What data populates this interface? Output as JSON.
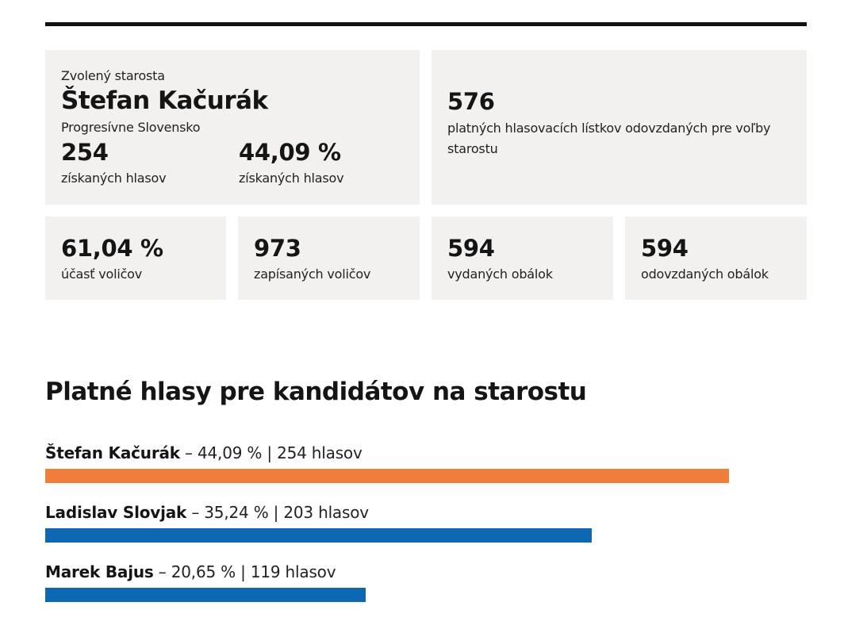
{
  "elected": {
    "caption": "Zvolený starosta",
    "name": "Štefan Kačurák",
    "party": "Progresívne Slovensko",
    "votes": "254",
    "votes_label": "získaných hlasov",
    "percent": "44,09 %",
    "percent_label": "získaných hlasov"
  },
  "valid_ballots": {
    "value": "576",
    "label": "platných hlasovacích lístkov odovzdaných pre voľby starostu"
  },
  "stats": [
    {
      "value": "61,04 %",
      "label": "účasť voličov"
    },
    {
      "value": "973",
      "label": "zapísaných voličov"
    },
    {
      "value": "594",
      "label": "vydaných obálok"
    },
    {
      "value": "594",
      "label": "odovzdaných obálok"
    }
  ],
  "colors": {
    "winner": "#f07d3a",
    "other": "#0e68b1",
    "card_bg": "#f2f1ef"
  },
  "chart_data": {
    "type": "bar",
    "orientation": "horizontal",
    "title": "Platné hlasy pre kandidátov na starostu",
    "categories": [
      "Štefan Kačurák",
      "Ladislav Slovjak",
      "Marek Bajus"
    ],
    "values": [
      44.09,
      35.24,
      20.65
    ],
    "votes": [
      254,
      203,
      119
    ],
    "labels": [
      {
        "name": "Štefan Kačurák",
        "detail": " – 44,09 % | 254 hlasov",
        "color": "#f07d3a"
      },
      {
        "name": "Ladislav Slovjak",
        "detail": " – 35,24 % | 203 hlasov",
        "color": "#0e68b1"
      },
      {
        "name": "Marek Bajus",
        "detail": " – 20,65 % | 119 hlasov",
        "color": "#0e68b1"
      }
    ]
  }
}
